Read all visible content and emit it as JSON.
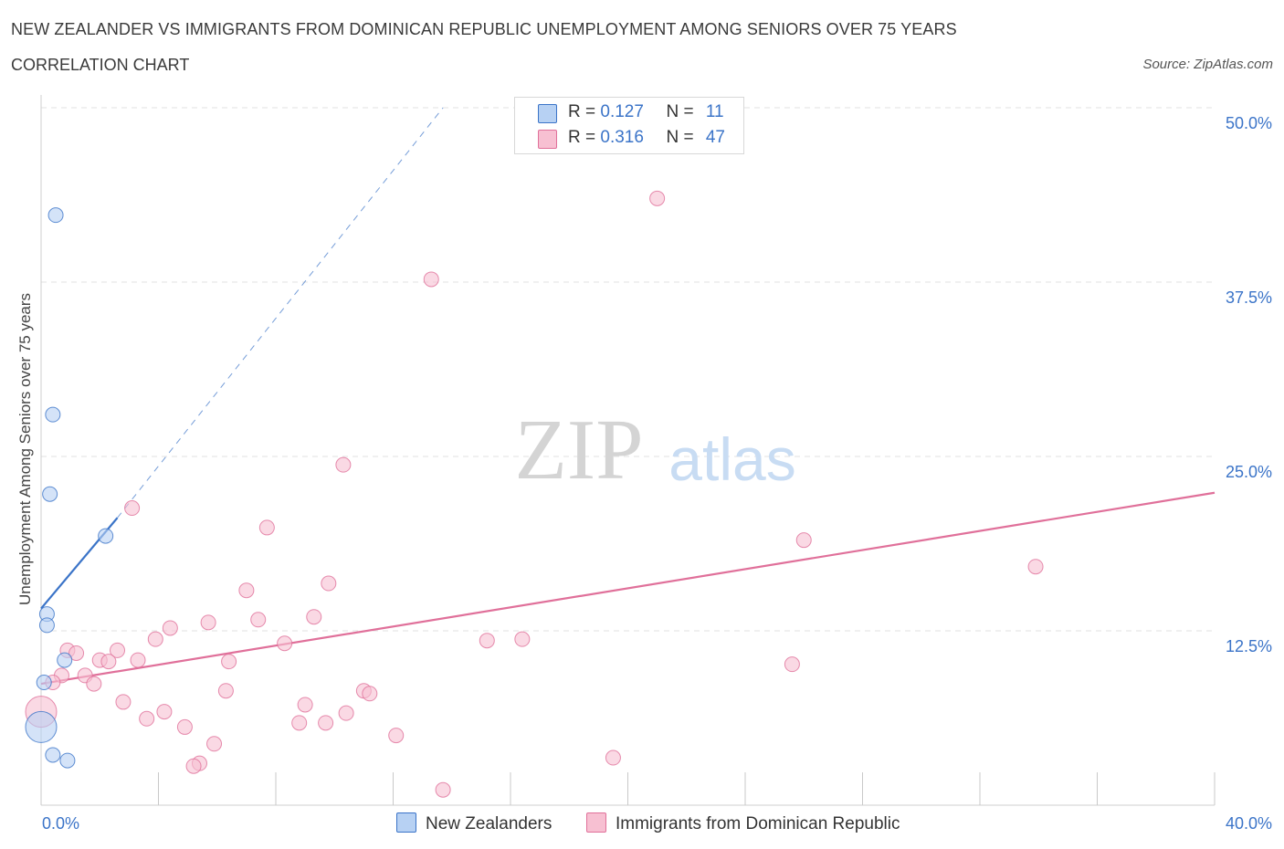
{
  "title": "NEW ZEALANDER VS IMMIGRANTS FROM DOMINICAN REPUBLIC UNEMPLOYMENT AMONG SENIORS OVER 75 YEARS",
  "subtitle": "CORRELATION CHART",
  "source": "Source: ZipAtlas.com",
  "watermark": {
    "zip": "ZIP",
    "atlas": "atlas"
  },
  "legend": {
    "rows": [
      {
        "r_label": "R = ",
        "r_value": "0.127",
        "n_label": "N = ",
        "n_value": "11"
      },
      {
        "r_label": "R = ",
        "r_value": "0.316",
        "n_label": "N = ",
        "n_value": "47"
      }
    ]
  },
  "chart_data": {
    "type": "scatter",
    "title": "NEW ZEALANDER VS IMMIGRANTS FROM DOMINICAN REPUBLIC UNEMPLOYMENT AMONG SENIORS OVER 75 YEARS",
    "xlabel": "",
    "ylabel": "Unemployment Among Seniors over 75 years",
    "xlim": [
      0,
      40
    ],
    "ylim": [
      0,
      50
    ],
    "x_tick_labels": [
      "0.0%",
      "40.0%"
    ],
    "y_tick_values": [
      12.5,
      25.0,
      37.5,
      50.0
    ],
    "y_tick_labels": [
      "12.5%",
      "25.0%",
      "37.5%",
      "50.0%"
    ],
    "grid": true,
    "legend_position": "top-center",
    "colors": {
      "series1": "#3b74c8",
      "series2": "#e0709a",
      "series1_fill": "#b7d1f3",
      "series2_fill": "#f7c0d2",
      "tick_label": "#3b74c8"
    },
    "series": [
      {
        "name": "New Zealanders",
        "r": 0.127,
        "n": 11,
        "trend": {
          "x0": 0.0,
          "y0": 14.1,
          "x1": 2.6,
          "y1": 20.6,
          "dashed_to_x": 13.7,
          "dashed_to_y": 50.0
        },
        "points": [
          {
            "x": 0.5,
            "y": 42.3,
            "size": "normal"
          },
          {
            "x": 0.4,
            "y": 28.0,
            "size": "normal"
          },
          {
            "x": 0.3,
            "y": 22.3,
            "size": "normal"
          },
          {
            "x": 2.2,
            "y": 19.3,
            "size": "normal"
          },
          {
            "x": 0.2,
            "y": 13.7,
            "size": "normal"
          },
          {
            "x": 0.2,
            "y": 12.9,
            "size": "normal"
          },
          {
            "x": 0.8,
            "y": 10.4,
            "size": "normal"
          },
          {
            "x": 0.1,
            "y": 8.8,
            "size": "normal"
          },
          {
            "x": 0.0,
            "y": 5.6,
            "size": "large"
          },
          {
            "x": 0.4,
            "y": 3.6,
            "size": "normal"
          },
          {
            "x": 0.9,
            "y": 3.2,
            "size": "normal"
          }
        ]
      },
      {
        "name": "Immigrants from Dominican Republic",
        "r": 0.316,
        "n": 47,
        "trend": {
          "x0": 0.0,
          "y0": 8.7,
          "x1": 40.0,
          "y1": 22.4
        },
        "points": [
          {
            "x": 21.0,
            "y": 43.5,
            "size": "normal"
          },
          {
            "x": 13.3,
            "y": 37.7,
            "size": "normal"
          },
          {
            "x": 10.3,
            "y": 24.4,
            "size": "normal"
          },
          {
            "x": 3.1,
            "y": 21.3,
            "size": "normal"
          },
          {
            "x": 7.7,
            "y": 19.9,
            "size": "normal"
          },
          {
            "x": 26.0,
            "y": 19.0,
            "size": "normal"
          },
          {
            "x": 33.9,
            "y": 17.1,
            "size": "normal"
          },
          {
            "x": 9.8,
            "y": 15.9,
            "size": "normal"
          },
          {
            "x": 7.0,
            "y": 15.4,
            "size": "normal"
          },
          {
            "x": 9.3,
            "y": 13.5,
            "size": "normal"
          },
          {
            "x": 7.4,
            "y": 13.3,
            "size": "normal"
          },
          {
            "x": 5.7,
            "y": 13.1,
            "size": "normal"
          },
          {
            "x": 4.4,
            "y": 12.7,
            "size": "normal"
          },
          {
            "x": 3.9,
            "y": 11.9,
            "size": "normal"
          },
          {
            "x": 15.2,
            "y": 11.8,
            "size": "normal"
          },
          {
            "x": 16.4,
            "y": 11.9,
            "size": "normal"
          },
          {
            "x": 8.3,
            "y": 11.6,
            "size": "normal"
          },
          {
            "x": 2.6,
            "y": 11.1,
            "size": "normal"
          },
          {
            "x": 0.9,
            "y": 11.1,
            "size": "normal"
          },
          {
            "x": 1.2,
            "y": 10.9,
            "size": "normal"
          },
          {
            "x": 2.0,
            "y": 10.4,
            "size": "normal"
          },
          {
            "x": 2.3,
            "y": 10.3,
            "size": "normal"
          },
          {
            "x": 3.3,
            "y": 10.4,
            "size": "normal"
          },
          {
            "x": 6.4,
            "y": 10.3,
            "size": "normal"
          },
          {
            "x": 25.6,
            "y": 10.1,
            "size": "normal"
          },
          {
            "x": 0.7,
            "y": 9.3,
            "size": "normal"
          },
          {
            "x": 1.5,
            "y": 9.3,
            "size": "normal"
          },
          {
            "x": 0.4,
            "y": 8.8,
            "size": "normal"
          },
          {
            "x": 1.8,
            "y": 8.7,
            "size": "normal"
          },
          {
            "x": 6.3,
            "y": 8.2,
            "size": "normal"
          },
          {
            "x": 11.0,
            "y": 8.2,
            "size": "normal"
          },
          {
            "x": 11.2,
            "y": 8.0,
            "size": "normal"
          },
          {
            "x": 2.8,
            "y": 7.4,
            "size": "normal"
          },
          {
            "x": 9.0,
            "y": 7.2,
            "size": "normal"
          },
          {
            "x": 4.2,
            "y": 6.7,
            "size": "normal"
          },
          {
            "x": 10.4,
            "y": 6.6,
            "size": "normal"
          },
          {
            "x": 3.6,
            "y": 6.2,
            "size": "normal"
          },
          {
            "x": 0.0,
            "y": 6.7,
            "size": "large"
          },
          {
            "x": 8.8,
            "y": 5.9,
            "size": "normal"
          },
          {
            "x": 9.7,
            "y": 5.9,
            "size": "normal"
          },
          {
            "x": 4.9,
            "y": 5.6,
            "size": "normal"
          },
          {
            "x": 12.1,
            "y": 5.0,
            "size": "normal"
          },
          {
            "x": 5.9,
            "y": 4.4,
            "size": "normal"
          },
          {
            "x": 19.5,
            "y": 3.4,
            "size": "normal"
          },
          {
            "x": 5.4,
            "y": 3.0,
            "size": "normal"
          },
          {
            "x": 5.2,
            "y": 2.8,
            "size": "normal"
          },
          {
            "x": 13.7,
            "y": 1.1,
            "size": "normal"
          }
        ]
      }
    ]
  }
}
